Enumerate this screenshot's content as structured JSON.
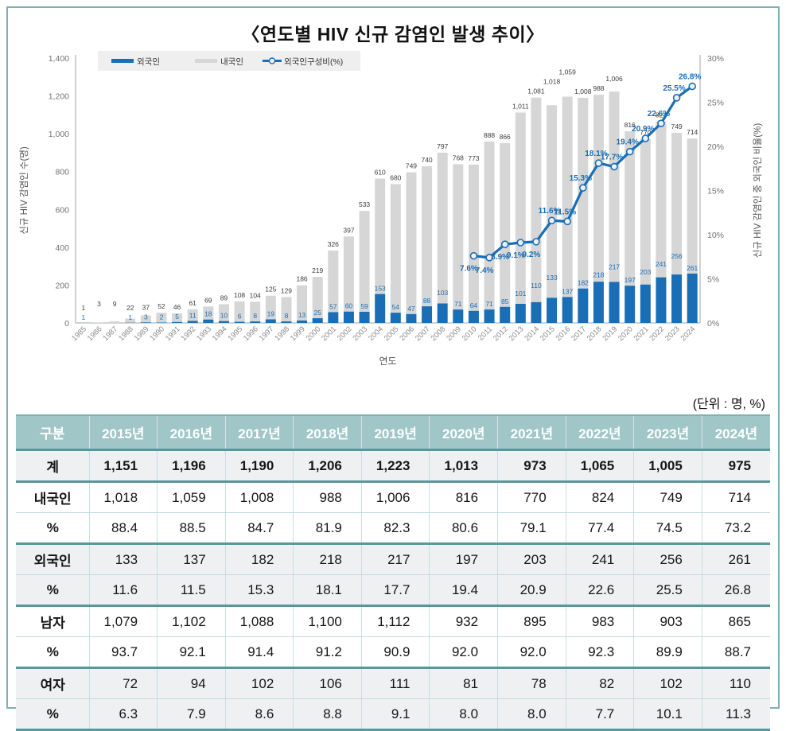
{
  "page": {
    "title": "〈연도별 HIV 신규 감염인 발생 추이〉",
    "unit_note": "(단위 : 명, %)"
  },
  "colors": {
    "bar_foreign": "#1a6eb5",
    "bar_domestic": "#d6d6d6",
    "line": "#1a6eb5",
    "label_dark": "#3d3d3d",
    "axis": "#a6a6a6",
    "tick_text": "#737373",
    "xtick_text": "#8a8a8a",
    "legend_bg": "#efefef"
  },
  "chart_data": {
    "type": "bar",
    "subtype": "stacked-bars-with-line",
    "title": "연도별 HIV 신규 감염인 발생 추이",
    "xlabel": "연도",
    "categories": [
      "1985",
      "1986",
      "1987",
      "1988",
      "1989",
      "1990",
      "1991",
      "1992",
      "1993",
      "1994",
      "1995",
      "1996",
      "1997",
      "1998",
      "1999",
      "2000",
      "2001",
      "2002",
      "2003",
      "2004",
      "2005",
      "2006",
      "2007",
      "2008",
      "2009",
      "2010",
      "2011",
      "2012",
      "2013",
      "2014",
      "2015",
      "2016",
      "2017",
      "2018",
      "2019",
      "2020",
      "2021",
      "2022",
      "2023",
      "2024"
    ],
    "series": [
      {
        "name": "외국인",
        "type": "bar",
        "values": [
          1,
          null,
          null,
          1,
          3,
          2,
          5,
          11,
          18,
          10,
          6,
          8,
          19,
          8,
          13,
          25,
          57,
          60,
          59,
          153,
          54,
          47,
          88,
          103,
          71,
          64,
          71,
          85,
          101,
          110,
          133,
          137,
          182,
          218,
          217,
          197,
          203,
          241,
          256,
          261
        ]
      },
      {
        "name": "내국인",
        "type": "bar",
        "values": [
          1,
          3,
          9,
          22,
          37,
          52,
          46,
          61,
          69,
          89,
          108,
          104,
          125,
          129,
          186,
          219,
          326,
          397,
          533,
          610,
          680,
          749,
          740,
          797,
          768,
          773,
          888,
          866,
          1011,
          1081,
          1018,
          1059,
          1008,
          988,
          1006,
          816,
          770,
          824,
          749,
          714
        ]
      },
      {
        "name": "외국인구성비(%)",
        "type": "line",
        "start_year": "2010",
        "values": [
          7.6,
          7.4,
          8.9,
          9.1,
          9.2,
          11.6,
          11.5,
          15.3,
          18.1,
          17.7,
          19.4,
          20.9,
          22.6,
          25.5,
          26.8
        ]
      }
    ],
    "ratio_labels": [
      "7.6%",
      "7.4%",
      "8.9%",
      "9.1%",
      "9.2%",
      "11.6%",
      "11.5%",
      "15.3%",
      "18.1%",
      "17.7%",
      "19.4%",
      "20.9%",
      "22.6%",
      "25.5%",
      "26.8%"
    ],
    "y_left": {
      "label": "신규 HIV 감염인 수(명)",
      "min": 0,
      "max": 1400,
      "step": 200
    },
    "y_right": {
      "label": "신규 HIV 감염인 중 외국인 비율(%)",
      "min": 0,
      "max": 30,
      "step": 5
    },
    "legend": [
      "외국인",
      "내국인",
      "외국인구성비(%)"
    ],
    "legend_position": "top-left-inside",
    "grid": false
  },
  "table": {
    "unit_note": "(단위 : 명, %)",
    "columns": [
      "구분",
      "2015년",
      "2016년",
      "2017년",
      "2018년",
      "2019년",
      "2020년",
      "2021년",
      "2022년",
      "2023년",
      "2024년"
    ],
    "rows": [
      {
        "label": "계",
        "values": [
          "1,151",
          "1,196",
          "1,190",
          "1,206",
          "1,223",
          "1,013",
          "973",
          "1,065",
          "1,005",
          "975"
        ],
        "bold": true,
        "tint": true,
        "group_end": true
      },
      {
        "label": "내국인",
        "values": [
          "1,018",
          "1,059",
          "1,008",
          "988",
          "1,006",
          "816",
          "770",
          "824",
          "749",
          "714"
        ],
        "bold": false,
        "tint": false,
        "group_end": false
      },
      {
        "label": "%",
        "values": [
          "88.4",
          "88.5",
          "84.7",
          "81.9",
          "82.3",
          "80.6",
          "79.1",
          "77.4",
          "74.5",
          "73.2"
        ],
        "bold": false,
        "tint": false,
        "group_end": true
      },
      {
        "label": "외국인",
        "values": [
          "133",
          "137",
          "182",
          "218",
          "217",
          "197",
          "203",
          "241",
          "256",
          "261"
        ],
        "bold": false,
        "tint": true,
        "group_end": false
      },
      {
        "label": "%",
        "values": [
          "11.6",
          "11.5",
          "15.3",
          "18.1",
          "17.7",
          "19.4",
          "20.9",
          "22.6",
          "25.5",
          "26.8"
        ],
        "bold": false,
        "tint": true,
        "group_end": true
      },
      {
        "label": "남자",
        "values": [
          "1,079",
          "1,102",
          "1,088",
          "1,100",
          "1,112",
          "932",
          "895",
          "983",
          "903",
          "865"
        ],
        "bold": false,
        "tint": false,
        "group_end": false
      },
      {
        "label": "%",
        "values": [
          "93.7",
          "92.1",
          "91.4",
          "91.2",
          "90.9",
          "92.0",
          "92.0",
          "92.3",
          "89.9",
          "88.7"
        ],
        "bold": false,
        "tint": false,
        "group_end": true
      },
      {
        "label": "여자",
        "values": [
          "72",
          "94",
          "102",
          "106",
          "111",
          "81",
          "78",
          "82",
          "102",
          "110"
        ],
        "bold": false,
        "tint": true,
        "group_end": false
      },
      {
        "label": "%",
        "values": [
          "6.3",
          "7.9",
          "8.6",
          "8.8",
          "9.1",
          "8.0",
          "8.0",
          "7.7",
          "10.1",
          "11.3"
        ],
        "bold": false,
        "tint": true,
        "group_end": true
      }
    ]
  }
}
